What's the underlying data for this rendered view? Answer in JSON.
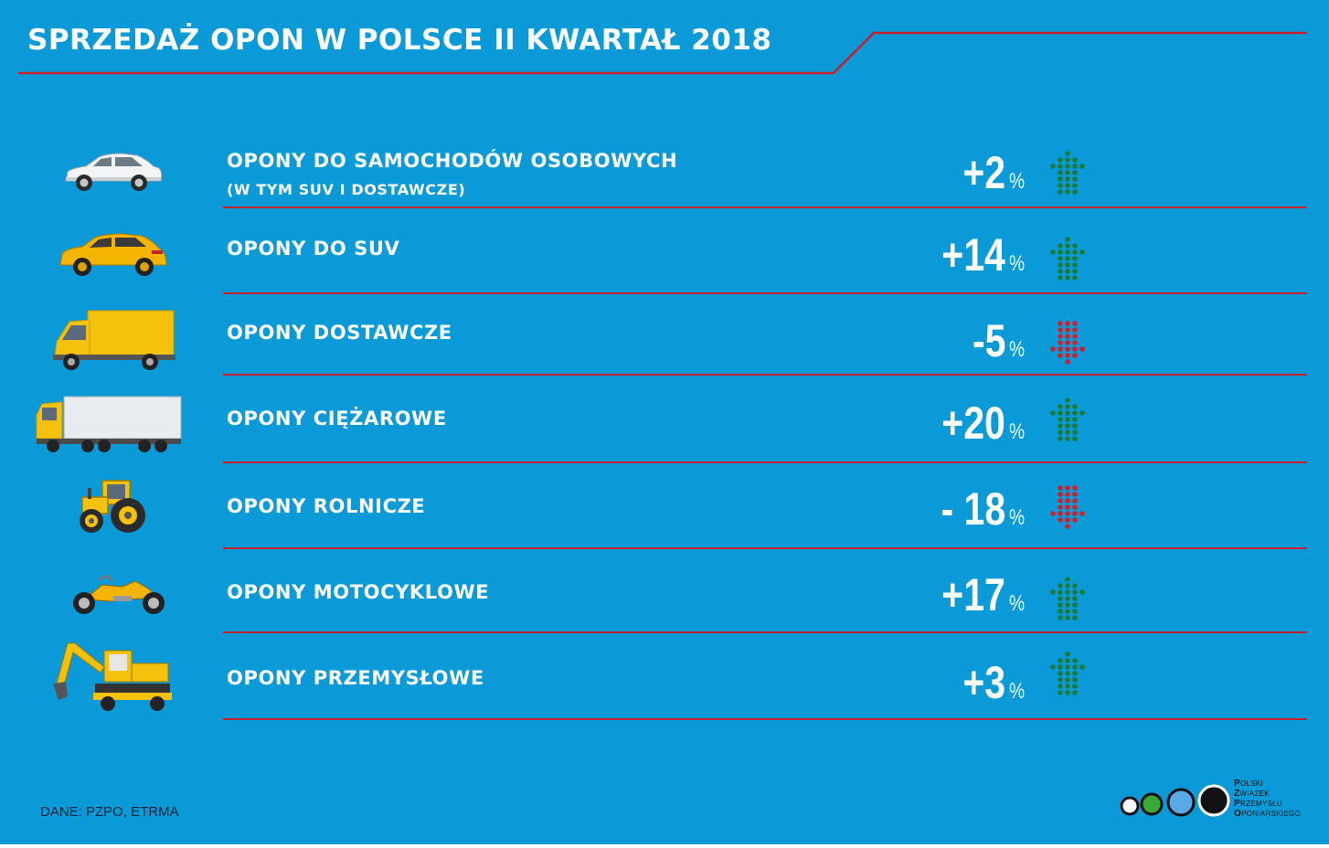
{
  "title": "SPRZEDAŻ OPON W POLSCE II KWARTAŁ 2018",
  "colors": {
    "background": "#0a9ad8",
    "divider": "#c8202c",
    "increase": "#1a7a3a",
    "decrease": "#d0202a",
    "text": "#ffffff"
  },
  "rows": [
    {
      "icon": "passenger-car-icon",
      "label": "OPONY DO SAMOCHODÓW OSOBOWYCH",
      "sublabel": "(W TYM SUV I DOSTAWCZE)",
      "value": "+2",
      "unit": "%",
      "direction": "up",
      "change_percent": 2
    },
    {
      "icon": "suv-icon",
      "label": "OPONY DO SUV",
      "value": "+14",
      "unit": "%",
      "direction": "up",
      "change_percent": 14
    },
    {
      "icon": "delivery-van-icon",
      "label": "OPONY DOSTAWCZE",
      "value": "-5",
      "unit": "%",
      "direction": "down",
      "change_percent": -5
    },
    {
      "icon": "truck-icon",
      "label": "OPONY CIĘŻAROWE",
      "value": "+20",
      "unit": "%",
      "direction": "up",
      "change_percent": 20
    },
    {
      "icon": "tractor-icon",
      "label": "OPONY ROLNICZE",
      "value": "- 18",
      "unit": "%",
      "direction": "down",
      "change_percent": -18
    },
    {
      "icon": "motorcycle-icon",
      "label": "OPONY MOTOCYKLOWE",
      "value": "+17",
      "unit": "%",
      "direction": "up",
      "change_percent": 17
    },
    {
      "icon": "excavator-icon",
      "label": "OPONY PRZEMYSŁOWE",
      "value": "+3",
      "unit": "%",
      "direction": "up",
      "change_percent": 3
    }
  ],
  "source": "DANE: PZPO, ETRMA",
  "logo": {
    "icon": "pzpo-logo-icon",
    "initials": [
      "P",
      "Z",
      "P",
      "O"
    ],
    "rest": [
      "OLSKI",
      "WIĄZEK",
      "RZEMYSŁU",
      "PONIARSKIEGO"
    ]
  }
}
